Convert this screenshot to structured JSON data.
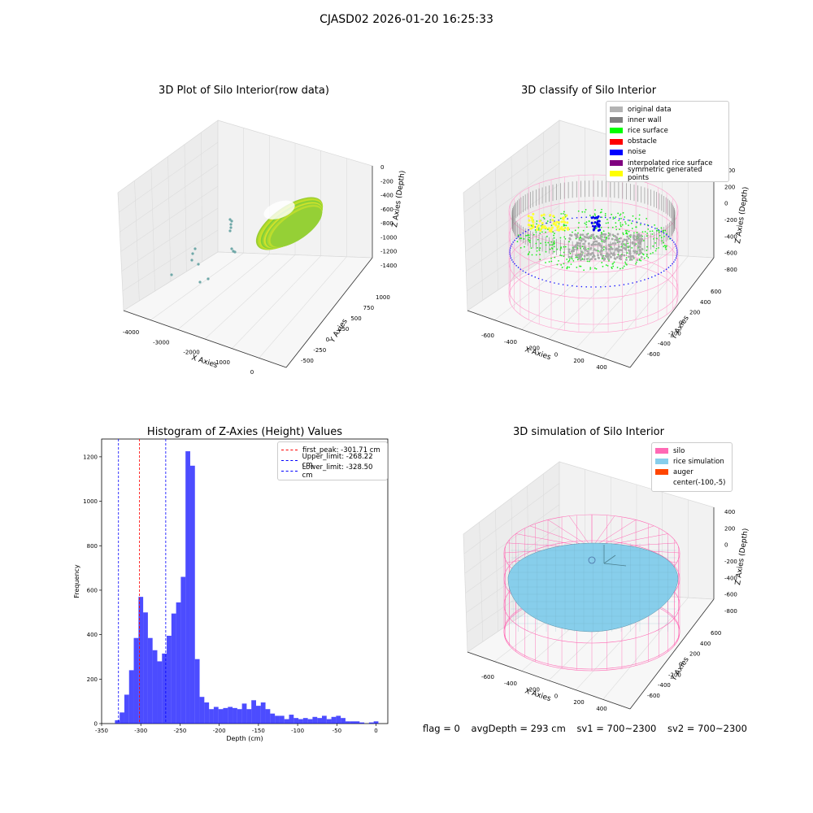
{
  "suptitle": "CJASD02 2026-01-20 16:25:33",
  "panels": {
    "raw": {
      "title": "3D Plot of Silo Interior(row data)",
      "xlabel": "X Axies",
      "ylabel": "Y Axies",
      "zlabel": "Z Axies (Depth)",
      "xticks": [
        "-4000",
        "-3000",
        "-2000",
        "-1000",
        "0"
      ],
      "yticks": [
        "-500",
        "-250",
        "0",
        "250",
        "500",
        "750",
        "1000"
      ],
      "zticks": [
        "0",
        "-200",
        "-400",
        "-600",
        "-800",
        "-1000",
        "-1200",
        "-1400"
      ]
    },
    "classify": {
      "title": "3D classify of Silo Interior",
      "xlabel": "X Axies",
      "ylabel": "Y Axies",
      "zlabel": "Z Axies (Depth)",
      "xticks": [
        "-600",
        "-400",
        "-200",
        "0",
        "200",
        "400"
      ],
      "yticks": [
        "-600",
        "-400",
        "-200",
        "0",
        "200",
        "400",
        "600"
      ],
      "zticks": [
        "400",
        "200",
        "0",
        "-200",
        "-400",
        "-600",
        "-800"
      ],
      "legend": [
        {
          "label": "original data",
          "color": "#b3b3b3"
        },
        {
          "label": "inner wall",
          "color": "#808080"
        },
        {
          "label": "rice surface",
          "color": "#00ff00"
        },
        {
          "label": "obstacle",
          "color": "#ff0000"
        },
        {
          "label": "noise",
          "color": "#0000ff"
        },
        {
          "label": "interpolated rice surface",
          "color": "#800080"
        },
        {
          "label": "symmetric generated points",
          "color": "#ffff00"
        }
      ]
    },
    "simulation": {
      "title": "3D simulation of Silo Interior",
      "xlabel": "X Axies",
      "ylabel": "Y Axies",
      "zlabel": "Z Axies (Depth)",
      "xticks": [
        "-600",
        "-400",
        "-200",
        "0",
        "200",
        "400"
      ],
      "yticks": [
        "-600",
        "-400",
        "-200",
        "0",
        "200",
        "400",
        "600"
      ],
      "zticks": [
        "400",
        "200",
        "0",
        "-200",
        "-400",
        "-600",
        "-800"
      ],
      "legend": [
        {
          "label": "silo",
          "color": "#ff69b4"
        },
        {
          "label": "rice simulation",
          "color": "#87ceeb"
        },
        {
          "label": "auger",
          "color": "#ff4500"
        },
        {
          "label": "center(-100,-5)",
          "color": ""
        }
      ]
    }
  },
  "footer": {
    "flag": "flag = 0",
    "avg": "avgDepth = 293 cm",
    "sv1": "sv1 = 700~2300",
    "sv2": "sv2 = 700~2300"
  },
  "colors": {
    "hist_bar": "#0000ff",
    "silo": "#ff69b4",
    "rice": "#87ceeb"
  },
  "chart_data": [
    {
      "type": "bar",
      "title": "Histogram of Z-Axies (Height) Values",
      "xlabel": "Depth (cm)",
      "ylabel": "Frequency",
      "xlim": [
        -350,
        15
      ],
      "ylim": [
        0,
        1280
      ],
      "xticks": [
        -350,
        -300,
        -250,
        -200,
        -150,
        -100,
        -50,
        0
      ],
      "yticks": [
        0,
        200,
        400,
        600,
        800,
        1000,
        1200
      ],
      "bin_width": 6,
      "bin_starts": [
        -333,
        -327,
        -321,
        -315,
        -309,
        -303,
        -297,
        -291,
        -285,
        -279,
        -273,
        -267,
        -261,
        -255,
        -249,
        -243,
        -237,
        -231,
        -225,
        -219,
        -213,
        -207,
        -201,
        -195,
        -189,
        -183,
        -177,
        -171,
        -165,
        -159,
        -153,
        -147,
        -141,
        -135,
        -129,
        -123,
        -117,
        -111,
        -105,
        -99,
        -93,
        -87,
        -81,
        -75,
        -69,
        -63,
        -57,
        -51,
        -45,
        -39,
        -33,
        -27,
        -21,
        -15,
        -9,
        -3
      ],
      "values": [
        15,
        50,
        130,
        240,
        385,
        570,
        500,
        385,
        330,
        280,
        315,
        395,
        495,
        545,
        660,
        1225,
        1160,
        290,
        120,
        95,
        65,
        75,
        65,
        70,
        75,
        70,
        65,
        90,
        65,
        105,
        80,
        95,
        65,
        45,
        35,
        35,
        20,
        40,
        25,
        20,
        25,
        20,
        30,
        25,
        35,
        20,
        30,
        35,
        25,
        10,
        10,
        10,
        5,
        0,
        5,
        10
      ],
      "vlines": [
        {
          "x": -301.71,
          "color": "#ff0000",
          "label": "first_peak: -301.71 cm"
        },
        {
          "x": -268.22,
          "color": "#0000ff",
          "label": "Upper_limit: -268.22 cm"
        },
        {
          "x": -328.5,
          "color": "#0000ff",
          "label": "Lower_limit: -328.50 cm"
        }
      ],
      "legend_position": "top-right"
    }
  ]
}
